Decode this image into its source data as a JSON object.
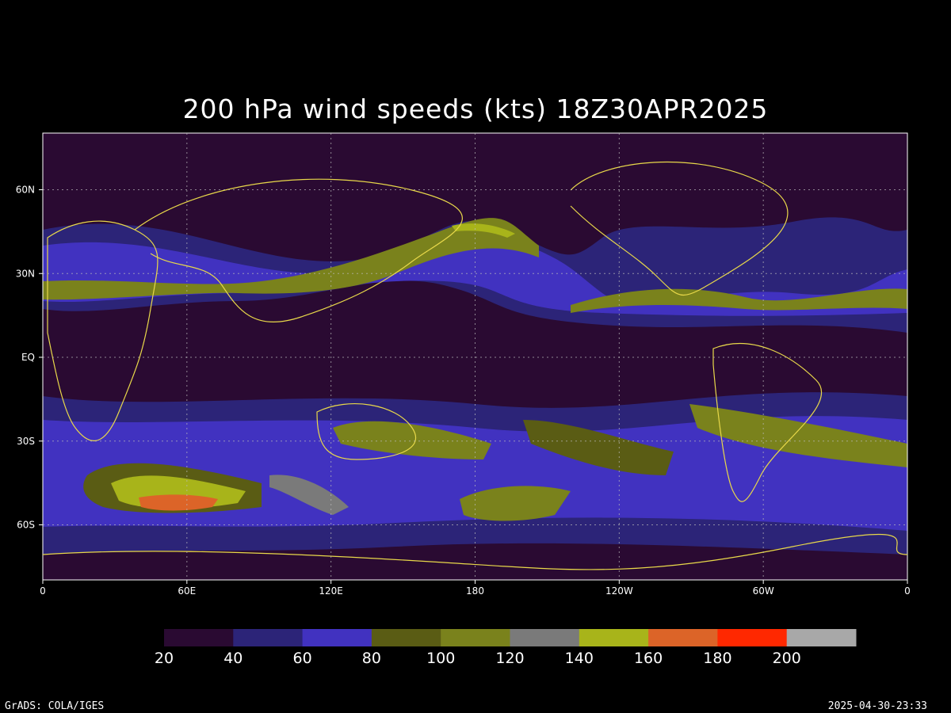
{
  "title": "200 hPa wind speeds (kts) 18Z30APR2025",
  "map": {
    "lon_labels": [
      "0",
      "60E",
      "120E",
      "180",
      "120W",
      "60W",
      "0"
    ],
    "lat_labels": [
      "60N",
      "30N",
      "EQ",
      "30S",
      "60S"
    ]
  },
  "colorbar": {
    "colors": [
      "#2a0a32",
      "#2c2478",
      "#4132c0",
      "#5a5c14",
      "#7a821c",
      "#7a7a7a",
      "#a8b41a",
      "#dc6428",
      "#ff2800",
      "#a8a8a8"
    ],
    "labels": [
      20,
      40,
      60,
      80,
      100,
      120,
      140,
      160,
      180,
      200
    ]
  },
  "footer": {
    "left": "GrADS: COLA/IGES",
    "right": "2025-04-30-23:33"
  }
}
